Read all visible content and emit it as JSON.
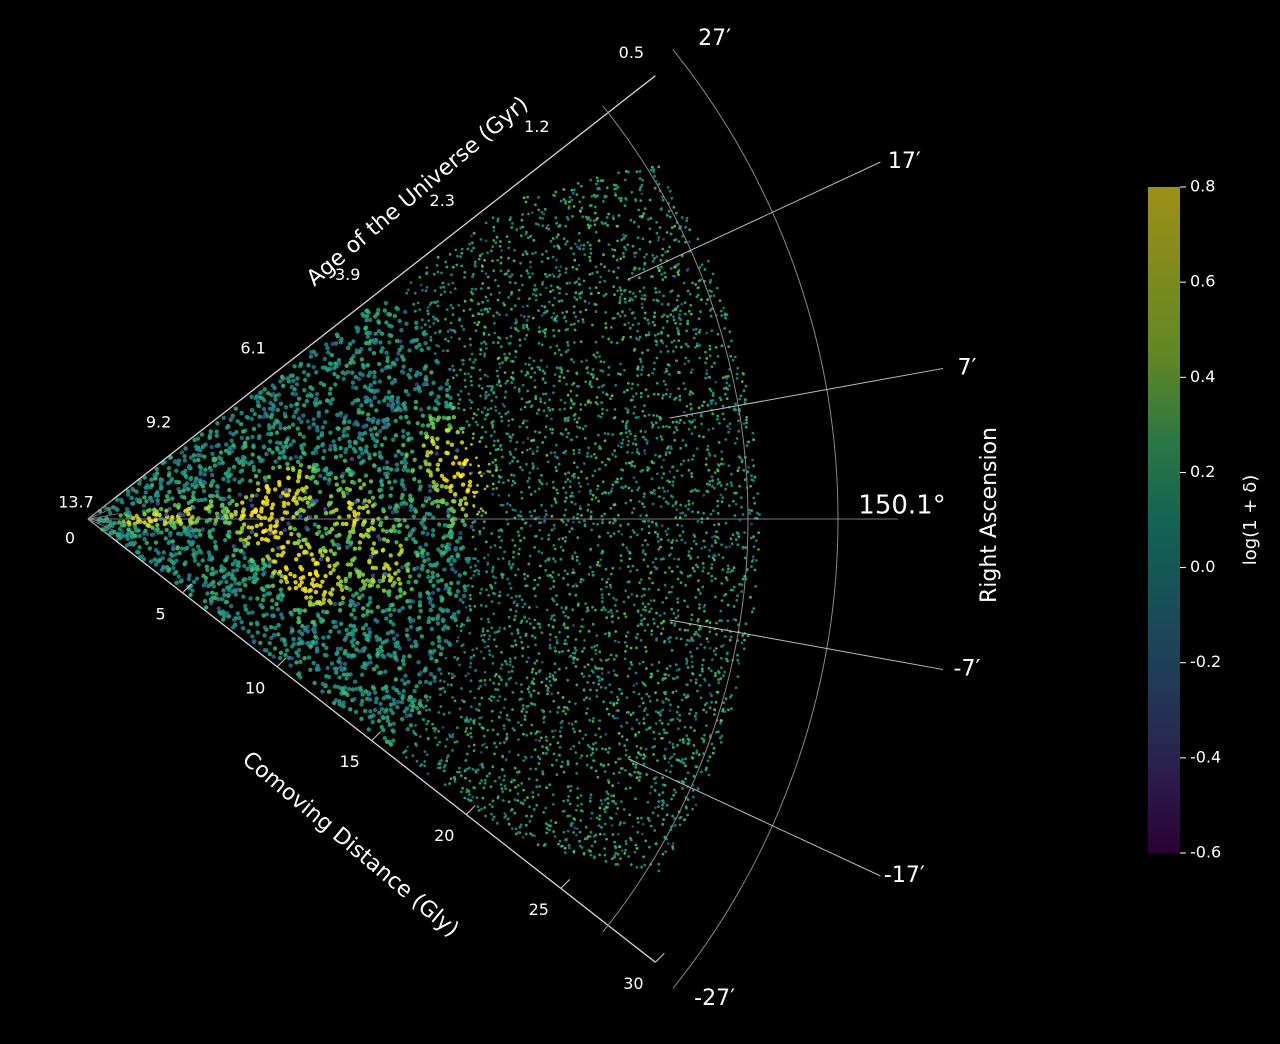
{
  "chart_data": {
    "type": "scatter",
    "projection": "polar-wedge",
    "colormap": "viridis",
    "radial_axis": {
      "label": "Comoving Distance (Gly)",
      "ticks": [
        "0",
        "5",
        "10",
        "15",
        "20",
        "25",
        "30"
      ],
      "range": [
        0,
        30
      ]
    },
    "age_axis": {
      "label": "Age of the Universe (Gyr)",
      "ticks": [
        "13.7",
        "9.2",
        "6.1",
        "3.9",
        "2.3",
        "1.2",
        "0.5"
      ]
    },
    "angular_axis": {
      "label": "Right Ascension",
      "center_label": "150.1°",
      "ticks": [
        "27′",
        "17′",
        "7′",
        "-7′",
        "-17′",
        "-27′"
      ],
      "offsets_arcmin": [
        27,
        17,
        7,
        -7,
        -17,
        -27
      ]
    },
    "colorbar": {
      "label": "log(1 + δ)",
      "ticks": [
        "0.8",
        "0.6",
        "0.4",
        "0.2",
        "0.0",
        "-0.2",
        "-0.4",
        "-0.6"
      ],
      "range": [
        -0.6,
        0.8
      ]
    },
    "density_features": [
      {
        "distance": 7,
        "offset_arcmin": 3,
        "value": 0.7
      },
      {
        "distance": 7.5,
        "offset_arcmin": -4,
        "value": 0.75
      },
      {
        "distance": 8.5,
        "offset_arcmin": 6,
        "value": 0.7
      },
      {
        "distance": 10,
        "offset_arcmin": -11,
        "value": 0.65
      },
      {
        "distance": 9,
        "offset_arcmin": -9,
        "value": 0.6
      },
      {
        "distance": 11,
        "offset_arcmin": 1,
        "value": 0.55
      },
      {
        "distance": 15,
        "offset_arcmin": 7,
        "value": 0.5
      },
      {
        "distance": 16,
        "offset_arcmin": 4,
        "value": 0.55
      },
      {
        "distance": 2.2,
        "offset_arcmin": -1,
        "value": 0.6
      },
      {
        "distance": 4,
        "offset_arcmin": 2,
        "value": 0.55
      },
      {
        "distance": 12.5,
        "offset_arcmin": -6,
        "value": 0.5
      }
    ]
  }
}
